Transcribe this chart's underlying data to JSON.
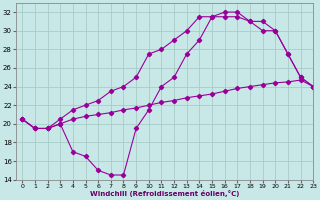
{
  "bg_color": "#c8e8e8",
  "grid_color": "#a0c8c0",
  "line_color": "#990099",
  "xlim": [
    -0.5,
    23
  ],
  "ylim": [
    14,
    33
  ],
  "yticks": [
    14,
    16,
    18,
    20,
    22,
    24,
    26,
    28,
    30,
    32
  ],
  "xticks": [
    0,
    1,
    2,
    3,
    4,
    5,
    6,
    7,
    8,
    9,
    10,
    11,
    12,
    13,
    14,
    15,
    16,
    17,
    18,
    19,
    20,
    21,
    22,
    23
  ],
  "xlabel": "Windchill (Refroidissement éolien,°C)",
  "line_a_x": [
    0,
    1,
    2,
    3,
    4,
    5,
    6,
    7,
    8,
    9,
    10,
    11,
    12,
    13,
    14,
    15,
    16,
    17,
    18,
    19,
    20,
    21,
    22,
    23
  ],
  "line_a_y": [
    20.5,
    19.5,
    19.5,
    20.0,
    20.5,
    20.8,
    21.0,
    21.2,
    21.5,
    21.7,
    22.0,
    22.3,
    22.5,
    22.8,
    23.0,
    23.2,
    23.5,
    23.8,
    24.0,
    24.2,
    24.4,
    24.5,
    24.7,
    24.0
  ],
  "line_b_x": [
    0,
    1,
    2,
    3,
    4,
    5,
    6,
    7,
    8,
    9,
    10,
    11,
    12,
    13,
    14,
    15,
    16,
    17,
    18,
    19,
    20,
    21,
    22,
    23
  ],
  "line_b_y": [
    20.5,
    19.5,
    19.5,
    20.0,
    17.0,
    16.5,
    15.0,
    14.5,
    14.5,
    19.5,
    21.5,
    24.0,
    25.0,
    27.5,
    29.0,
    31.5,
    31.5,
    31.5,
    31.0,
    30.0,
    30.0,
    27.5,
    25.0,
    24.0
  ],
  "line_c_x": [
    0,
    1,
    2,
    3,
    4,
    5,
    6,
    7,
    8,
    9,
    10,
    11,
    12,
    13,
    14,
    15,
    16,
    17,
    18,
    19,
    20,
    21,
    22,
    23
  ],
  "line_c_y": [
    20.5,
    19.5,
    19.5,
    20.5,
    21.5,
    22.0,
    22.5,
    23.5,
    24.0,
    25.0,
    27.5,
    28.0,
    29.0,
    30.0,
    31.5,
    31.5,
    32.0,
    32.0,
    31.0,
    31.0,
    30.0,
    27.5,
    25.0,
    24.0
  ]
}
